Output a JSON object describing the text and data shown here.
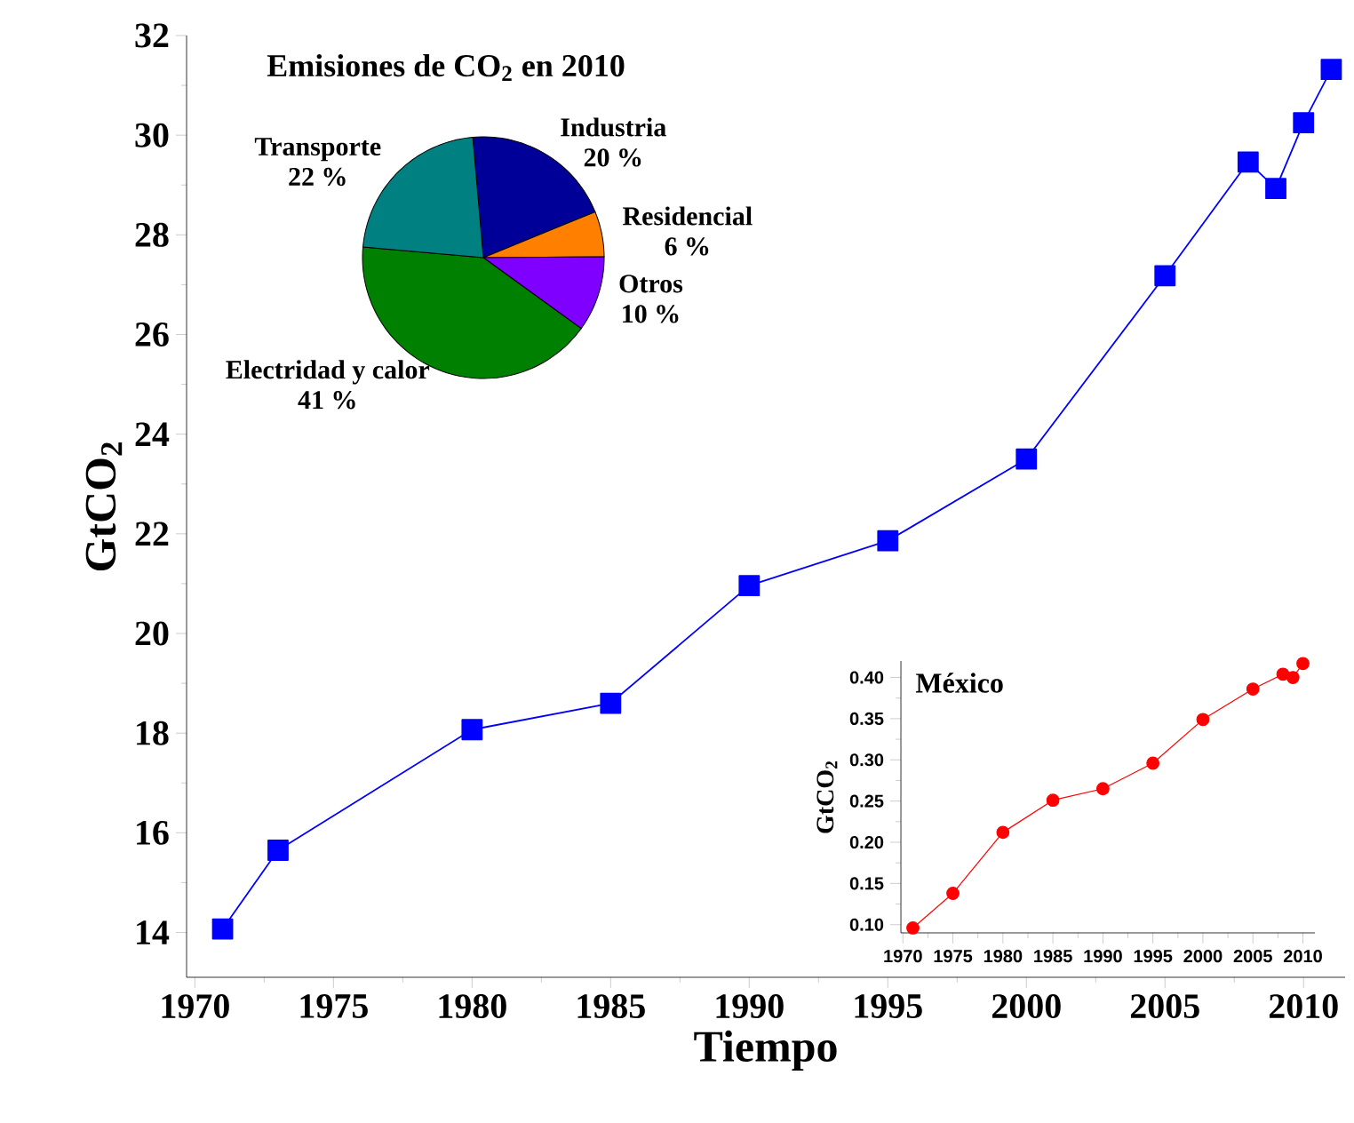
{
  "chart_data": [
    {
      "type": "line",
      "xlabel": "Tiempo",
      "ylabel": "GtCO$_{2}$",
      "x": [
        1971,
        1973,
        1980,
        1985,
        1990,
        1995,
        2000,
        2005,
        2008,
        2009,
        2010,
        2011
      ],
      "series": [
        {
          "color": "#0000ff",
          "values": [
            14.07,
            15.65,
            18.07,
            18.6,
            20.96,
            21.86,
            23.5,
            27.18,
            29.46,
            28.93,
            30.25,
            31.32
          ]
        }
      ],
      "xlim": [
        1969.7,
        2011.5
      ],
      "ylim": [
        13.1,
        32
      ],
      "xticks": [
        1970,
        1975,
        1980,
        1985,
        1990,
        1995,
        2000,
        2005,
        2010
      ],
      "yticks": [
        14,
        16,
        18,
        20,
        22,
        24,
        26,
        28,
        30,
        32
      ],
      "marker": "square",
      "grid": false
    },
    {
      "type": "pie",
      "title": "Emisiones de CO$_{2}$ en 2010",
      "categories": [
        "Industria",
        "Residencial",
        "Otros",
        "Electridad y calor",
        "Transporte"
      ],
      "values": [
        20,
        6,
        10,
        41,
        22
      ],
      "value_labels": [
        "20 %",
        "6 %",
        "10 %",
        "41 %",
        "22 %"
      ],
      "colors": [
        "#000099",
        "#ff8000",
        "#8000ff",
        "#008000",
        "#008080"
      ]
    },
    {
      "type": "line",
      "title": "México",
      "ylabel": "GtCO$_{2}$",
      "x": [
        1971,
        1975,
        1980,
        1985,
        1990,
        1995,
        2000,
        2005,
        2008,
        2009,
        2010
      ],
      "series": [
        {
          "color": "#ff0000",
          "values": [
            0.096,
            0.138,
            0.212,
            0.251,
            0.265,
            0.296,
            0.349,
            0.386,
            0.404,
            0.4,
            0.417
          ]
        }
      ],
      "xlim": [
        1969.8,
        2011.2
      ],
      "ylim": [
        0.09,
        0.42
      ],
      "xticks": [
        1970,
        1975,
        1980,
        1985,
        1990,
        1995,
        2000,
        2005,
        2010
      ],
      "yticks": [
        {
          "value": 0.1,
          "label": "0.10"
        },
        {
          "value": 0.15,
          "label": "0.15"
        },
        {
          "value": 0.2,
          "label": "0.20"
        },
        {
          "value": 0.25,
          "label": "0.25"
        },
        {
          "value": 0.3,
          "label": "0.30"
        },
        {
          "value": 0.35,
          "label": "0.35"
        },
        {
          "value": 0.4,
          "label": "0.40"
        }
      ],
      "marker": "circle",
      "grid": false
    }
  ]
}
